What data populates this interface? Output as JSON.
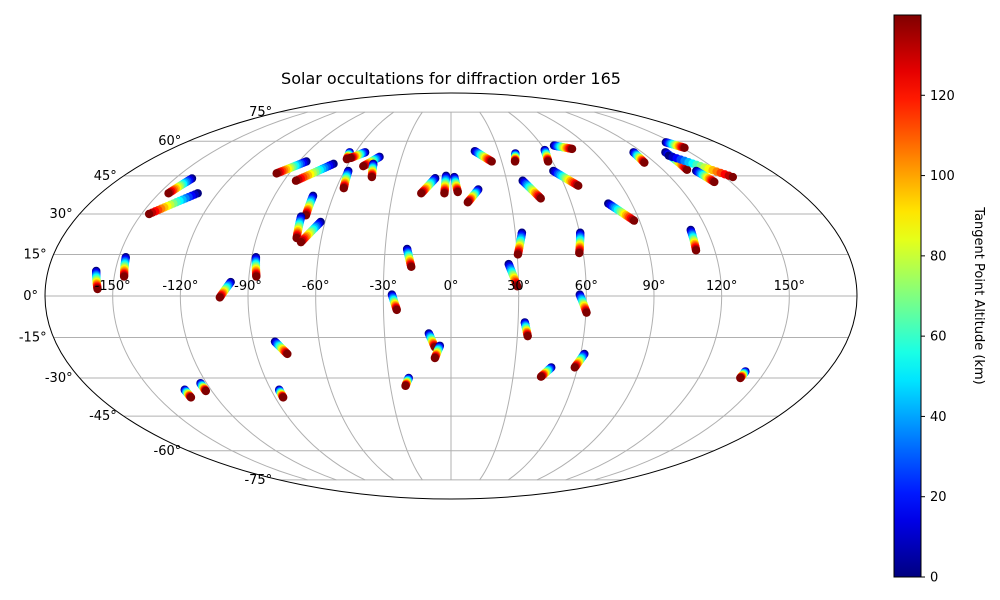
{
  "chart_data": {
    "type": "scatter",
    "projection": "mollweide",
    "title": "Solar occultations for diffraction order 165",
    "lon_ticks": [
      -150,
      -120,
      -90,
      -60,
      -30,
      0,
      30,
      60,
      90,
      120,
      150
    ],
    "lon_tick_labels": [
      "-150°",
      "-120°",
      "-90°",
      "-60°",
      "-30°",
      "0°",
      "30°",
      "60°",
      "90°",
      "120°",
      "150°"
    ],
    "lat_ticks": [
      -75,
      -60,
      -45,
      -30,
      -15,
      0,
      15,
      30,
      45,
      60,
      75
    ],
    "lat_tick_labels": [
      "-75°",
      "-60°",
      "-45°",
      "-30°",
      "-15°",
      "0°",
      "15°",
      "30°",
      "45°",
      "60°",
      "75°"
    ],
    "grid": true,
    "colorbar": {
      "label": "Tangent Point Altitude (km)",
      "colormap": "jet",
      "range": [
        0,
        140
      ],
      "ticks": [
        0,
        20,
        40,
        60,
        80,
        100,
        120
      ],
      "tick_labels": [
        "0",
        "20",
        "40",
        "60",
        "80",
        "100",
        "120"
      ]
    },
    "altitude_range_km": [
      0,
      140
    ],
    "tracks": [
      {
        "start": [
          -158.5,
          9.0
        ],
        "end": [
          -156.8,
          2.5
        ]
      },
      {
        "start": [
          -146.9,
          14.0
        ],
        "end": [
          -145.6,
          7.0
        ]
      },
      {
        "start": [
          -140.8,
          43.9
        ],
        "end": [
          -145.2,
          38.0
        ]
      },
      {
        "start": [
          -130.2,
          38.0
        ],
        "end": [
          -146.3,
          30.0
        ]
      },
      {
        "start": [
          -133.1,
          -34.5
        ],
        "end": [
          -133.1,
          -37.5
        ]
      },
      {
        "start": [
          -123.0,
          -32.0
        ],
        "end": [
          -123.0,
          -35.0
        ]
      },
      {
        "start": [
          -97.9,
          5.0
        ],
        "end": [
          -102.5,
          -0.5
        ]
      },
      {
        "start": [
          -85.6,
          51.0
        ],
        "end": [
          -97.0,
          46.0
        ]
      },
      {
        "start": [
          -88.1,
          14.0
        ],
        "end": [
          -86.7,
          7.0
        ]
      },
      {
        "start": [
          -85.9,
          -34.5
        ],
        "end": [
          -85.9,
          -37.5
        ]
      },
      {
        "start": [
          -68.6,
          50.0
        ],
        "end": [
          -83.5,
          43.0
        ]
      },
      {
        "start": [
          -70.3,
          37.0
        ],
        "end": [
          -70.1,
          29.5
        ]
      },
      {
        "start": [
          -72.2,
          29.0
        ],
        "end": [
          -71.4,
          21.0
        ]
      },
      {
        "start": [
          -80.1,
          -16.5
        ],
        "end": [
          -75.7,
          -21.0
        ]
      },
      {
        "start": [
          -62.1,
          27.0
        ],
        "end": [
          -69.0,
          19.5
        ]
      },
      {
        "start": [
          -63.6,
          55.0
        ],
        "end": [
          -62.5,
          52.0
        ]
      },
      {
        "start": [
          -53.9,
          55.0
        ],
        "end": [
          -60.7,
          52.5
        ]
      },
      {
        "start": [
          -57.8,
          47.0
        ],
        "end": [
          -56.1,
          40.0
        ]
      },
      {
        "start": [
          -43.5,
          53.0
        ],
        "end": [
          -50.6,
          49.0
        ]
      },
      {
        "start": [
          -45.4,
          50.0
        ],
        "end": [
          -43.3,
          44.5
        ]
      },
      {
        "start": [
          -26.2,
          0.5
        ],
        "end": [
          -24.1,
          -5.0
        ]
      },
      {
        "start": [
          -20.0,
          17.0
        ],
        "end": [
          -17.8,
          10.5
        ]
      },
      {
        "start": [
          -20.5,
          -30.0
        ],
        "end": [
          -22.5,
          -33.0
        ]
      },
      {
        "start": [
          -8.6,
          44.0
        ],
        "end": [
          -15.3,
          38.0
        ]
      },
      {
        "start": [
          -2.7,
          45.0
        ],
        "end": [
          -3.4,
          38.0
        ]
      },
      {
        "start": [
          1.8,
          44.5
        ],
        "end": [
          3.5,
          38.5
        ]
      },
      {
        "start": [
          -10.0,
          -13.5
        ],
        "end": [
          -7.4,
          -18.5
        ]
      },
      {
        "start": [
          -5.1,
          -18.0
        ],
        "end": [
          -7.5,
          -22.5
        ]
      },
      {
        "start": [
          14.2,
          39.5
        ],
        "end": [
          8.4,
          34.5
        ]
      },
      {
        "start": [
          15.1,
          55.5
        ],
        "end": [
          24.1,
          51.0
        ]
      },
      {
        "start": [
          25.9,
          11.5
        ],
        "end": [
          29.4,
          3.5
        ]
      },
      {
        "start": [
          33.1,
          23.0
        ],
        "end": [
          30.3,
          15.0
        ]
      },
      {
        "start": [
          33.0,
          -9.5
        ],
        "end": [
          34.7,
          -14.5
        ]
      },
      {
        "start": [
          40.1,
          54.5
        ],
        "end": [
          37.9,
          51.0
        ]
      },
      {
        "start": [
          38.6,
          43.0
        ],
        "end": [
          45.4,
          36.0
        ]
      },
      {
        "start": [
          47.5,
          -26.0
        ],
        "end": [
          43.5,
          -29.5
        ]
      },
      {
        "start": [
          57.6,
          47.0
        ],
        "end": [
          67.2,
          41.0
        ]
      },
      {
        "start": [
          68.0,
          58.0
        ],
        "end": [
          77.9,
          56.5
        ]
      },
      {
        "start": [
          59.8,
          56.0
        ],
        "end": [
          57.5,
          51.0
        ]
      },
      {
        "start": [
          60.3,
          23.0
        ],
        "end": [
          58.2,
          15.5
        ]
      },
      {
        "start": [
          57.1,
          0.5
        ],
        "end": [
          60.3,
          -6.0
        ]
      },
      {
        "start": [
          61.7,
          -21.0
        ],
        "end": [
          58.6,
          -26.0
        ]
      },
      {
        "start": [
          78.3,
          34.0
        ],
        "end": [
          87.4,
          27.5
        ]
      },
      {
        "start": [
          114.6,
          55.0
        ],
        "end": [
          113.7,
          50.5
        ]
      },
      {
        "start": [
          145.8,
          59.5
        ],
        "end": [
          151.5,
          57.0
        ]
      },
      {
        "start": [
          134.6,
          55.0
        ],
        "end": [
          133.6,
          47.5
        ]
      },
      {
        "start": [
          133.6,
          53.5
        ],
        "end": [
          154.2,
          44.5
        ]
      },
      {
        "start": [
          112.4,
          24.0
        ],
        "end": [
          111.5,
          16.5
        ]
      },
      {
        "start": [
          138.0,
          47.0
        ],
        "end": [
          141.1,
          42.5
        ]
      },
      {
        "start": [
          140.6,
          -27.5
        ],
        "end": [
          140.2,
          -30.0
        ]
      }
    ]
  }
}
